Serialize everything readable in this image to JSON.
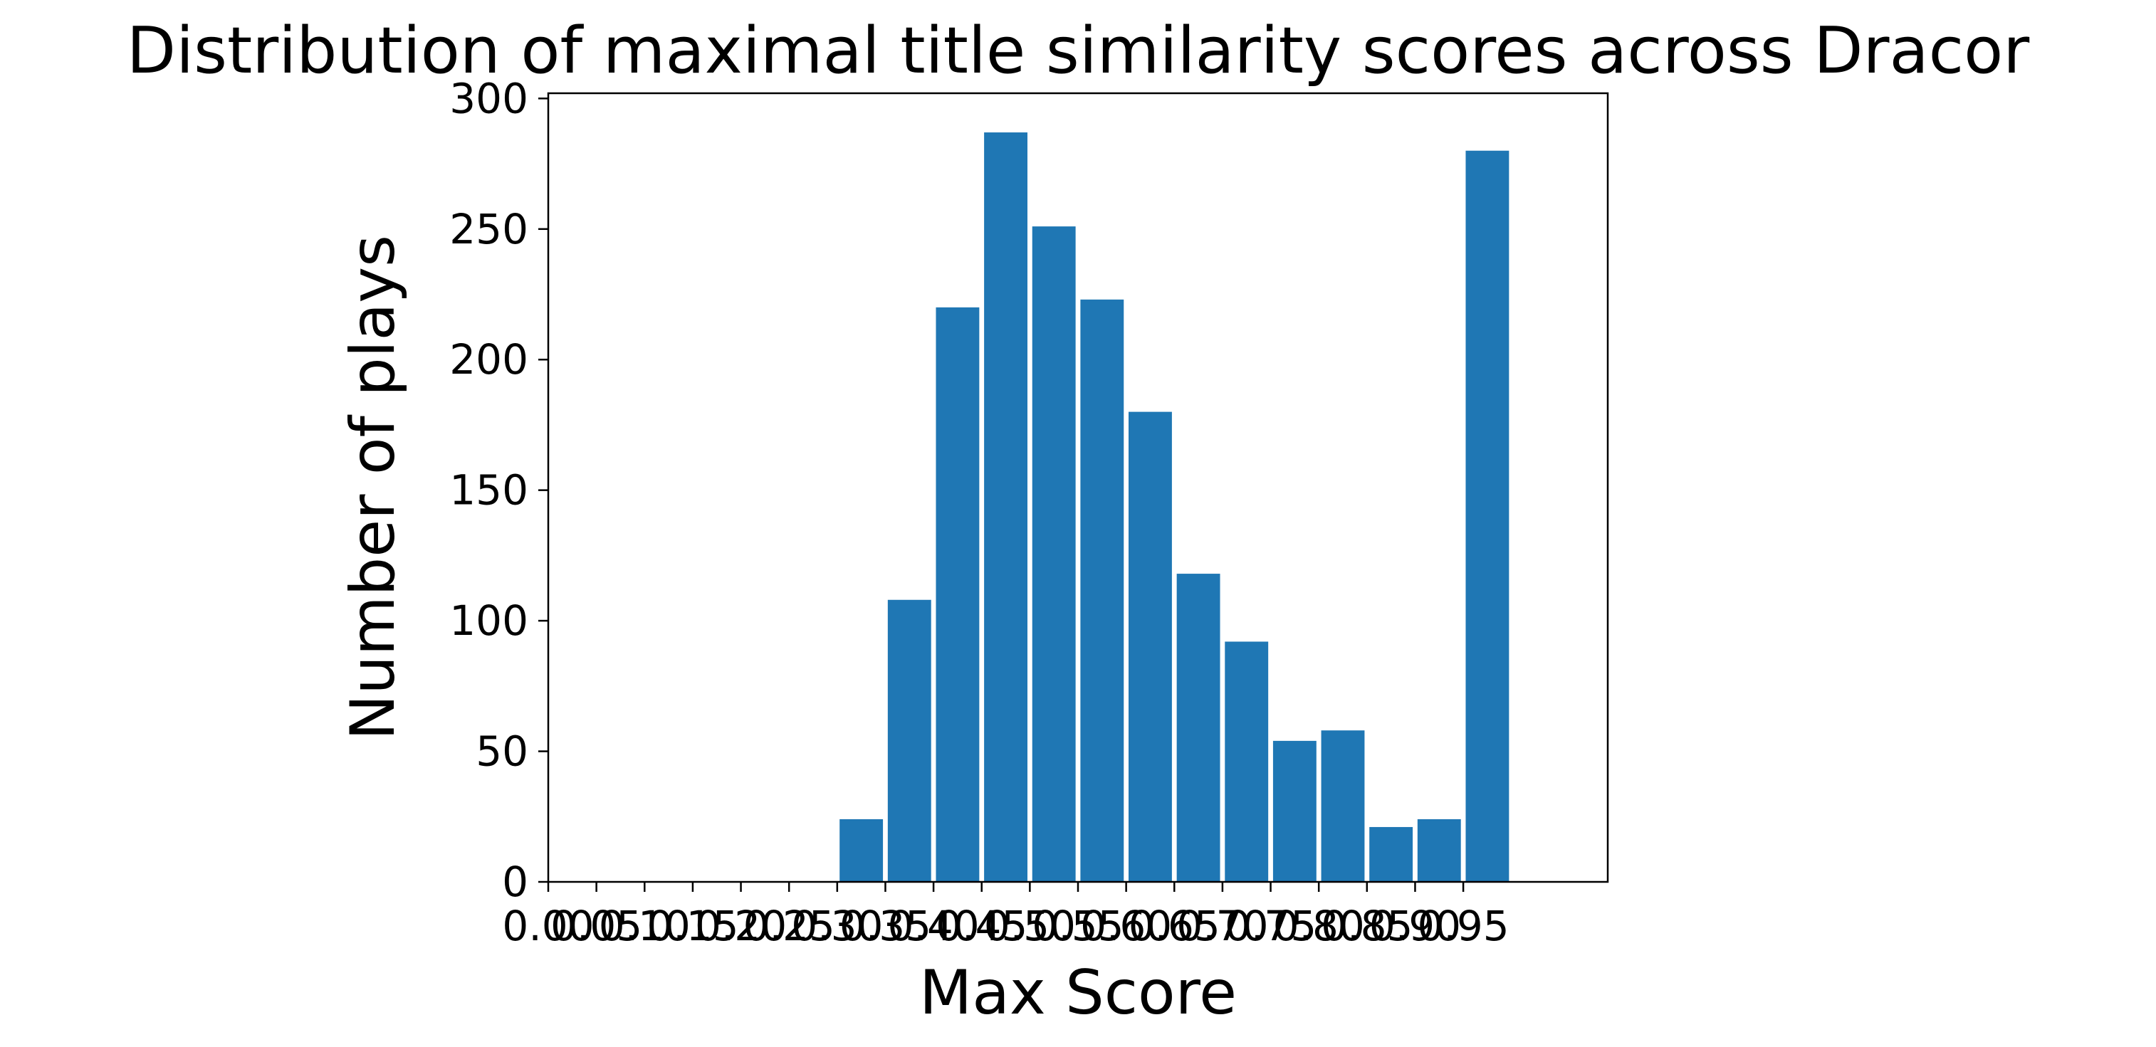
{
  "chart_data": {
    "type": "bar",
    "title": "Distribution of maximal title similarity scores across Dracor",
    "xlabel": "Max Score",
    "ylabel": "Number of plays",
    "x_tick_labels": [
      "0.00",
      "0.05",
      "0.10",
      "0.15",
      "0.20",
      "0.25",
      "0.30",
      "0.35",
      "0.40",
      "0.45",
      "0.50",
      "0.55",
      "0.60",
      "0.65",
      "0.70",
      "0.75",
      "0.80",
      "0.85",
      "0.90",
      "0.95"
    ],
    "y_tick_labels": [
      "0",
      "50",
      "100",
      "150",
      "200",
      "250",
      "300"
    ],
    "bins": [
      {
        "start": 0.3,
        "end": 0.35,
        "value": 24
      },
      {
        "start": 0.35,
        "end": 0.4,
        "value": 108
      },
      {
        "start": 0.4,
        "end": 0.45,
        "value": 220
      },
      {
        "start": 0.45,
        "end": 0.5,
        "value": 287
      },
      {
        "start": 0.5,
        "end": 0.55,
        "value": 251
      },
      {
        "start": 0.55,
        "end": 0.6,
        "value": 223
      },
      {
        "start": 0.6,
        "end": 0.65,
        "value": 180
      },
      {
        "start": 0.65,
        "end": 0.7,
        "value": 118
      },
      {
        "start": 0.7,
        "end": 0.75,
        "value": 92
      },
      {
        "start": 0.75,
        "end": 0.8,
        "value": 54
      },
      {
        "start": 0.8,
        "end": 0.85,
        "value": 58
      },
      {
        "start": 0.85,
        "end": 0.9,
        "value": 21
      },
      {
        "start": 0.9,
        "end": 0.95,
        "value": 24
      },
      {
        "start": 0.95,
        "end": 1.0,
        "value": 280
      }
    ],
    "xlim": [
      0,
      1.1
    ],
    "ylim": [
      0,
      302
    ],
    "bar_color": "#1f77b4",
    "grid": false
  }
}
